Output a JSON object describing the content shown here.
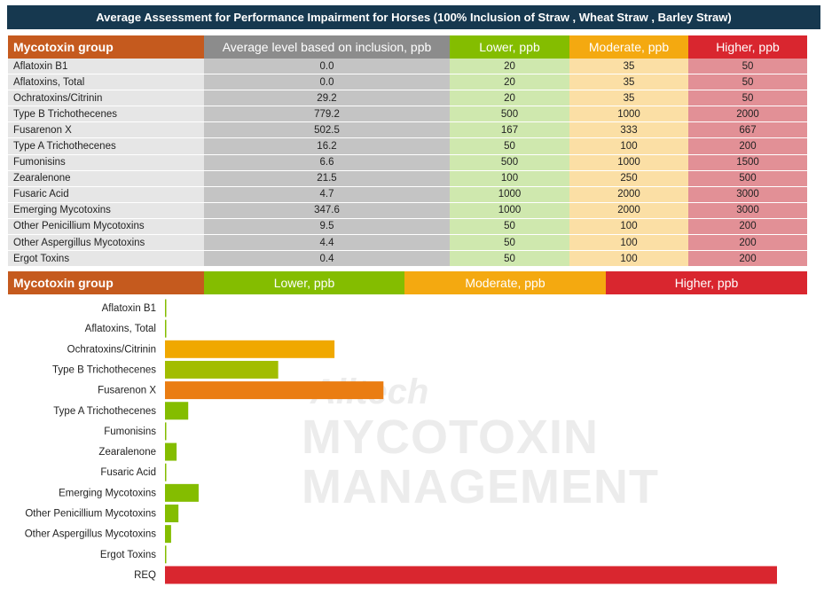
{
  "title": "Average Assessment for Performance Impairment for Horses (100% Inclusion of Straw , Wheat Straw , Barley Straw)",
  "table": {
    "headers": [
      "Mycotoxin group",
      "Average level based on inclusion, ppb",
      "Lower, ppb",
      "Moderate, ppb",
      "Higher, ppb"
    ],
    "rows": [
      [
        "Aflatoxin B1",
        "0.0",
        "20",
        "35",
        "50"
      ],
      [
        "Aflatoxins, Total",
        "0.0",
        "20",
        "35",
        "50"
      ],
      [
        "Ochratoxins/Citrinin",
        "29.2",
        "20",
        "35",
        "50"
      ],
      [
        "Type B Trichothecenes",
        "779.2",
        "500",
        "1000",
        "2000"
      ],
      [
        "Fusarenon X",
        "502.5",
        "167",
        "333",
        "667"
      ],
      [
        "Type A Trichothecenes",
        "16.2",
        "50",
        "100",
        "200"
      ],
      [
        "Fumonisins",
        "6.6",
        "500",
        "1000",
        "1500"
      ],
      [
        "Zearalenone",
        "21.5",
        "100",
        "250",
        "500"
      ],
      [
        "Fusaric Acid",
        "4.7",
        "1000",
        "2000",
        "3000"
      ],
      [
        "Emerging Mycotoxins",
        "347.6",
        "1000",
        "2000",
        "3000"
      ],
      [
        "Other Penicillium Mycotoxins",
        "9.5",
        "50",
        "100",
        "200"
      ],
      [
        "Other Aspergillus Mycotoxins",
        "4.4",
        "50",
        "100",
        "200"
      ],
      [
        "Ergot Toxins",
        "0.4",
        "50",
        "100",
        "200"
      ]
    ]
  },
  "legend": {
    "group_label": "Mycotoxin group",
    "lower": "Lower, ppb",
    "moderate": "Moderate, ppb",
    "higher": "Higher, ppb"
  },
  "watermark": {
    "logo": "Alltech",
    "line1": "MYCOTOXIN",
    "line2": "MANAGEMENT"
  },
  "colors": {
    "lower": "#84bd00",
    "lower_moderate": "#a2bd00",
    "moderate": "#f0a800",
    "moderate_higher": "#ea7d12",
    "higher": "#d9262f"
  },
  "chart_data": {
    "type": "bar",
    "orientation": "horizontal",
    "value_unit": "fraction of REQ",
    "categories": [
      "Aflatoxin B1",
      "Aflatoxins, Total",
      "Ochratoxins/Citrinin",
      "Type B Trichothecenes",
      "Fusarenon X",
      "Type A Trichothecenes",
      "Fumonisins",
      "Zearalenone",
      "Fusaric Acid",
      "Emerging Mycotoxins",
      "Other Penicillium Mycotoxins",
      "Other Aspergillus Mycotoxins",
      "Ergot Toxins",
      "REQ"
    ],
    "values": [
      0.002,
      0.002,
      0.277,
      0.185,
      0.357,
      0.038,
      0.002,
      0.019,
      0.002,
      0.055,
      0.022,
      0.01,
      0.002,
      1.0
    ],
    "bar_colors": [
      "lower",
      "lower",
      "moderate",
      "lower_moderate",
      "moderate_higher",
      "lower",
      "lower",
      "lower",
      "lower",
      "lower",
      "lower",
      "lower",
      "lower",
      "higher"
    ],
    "title": "",
    "xlabel": "",
    "ylabel": "",
    "grid": false
  }
}
